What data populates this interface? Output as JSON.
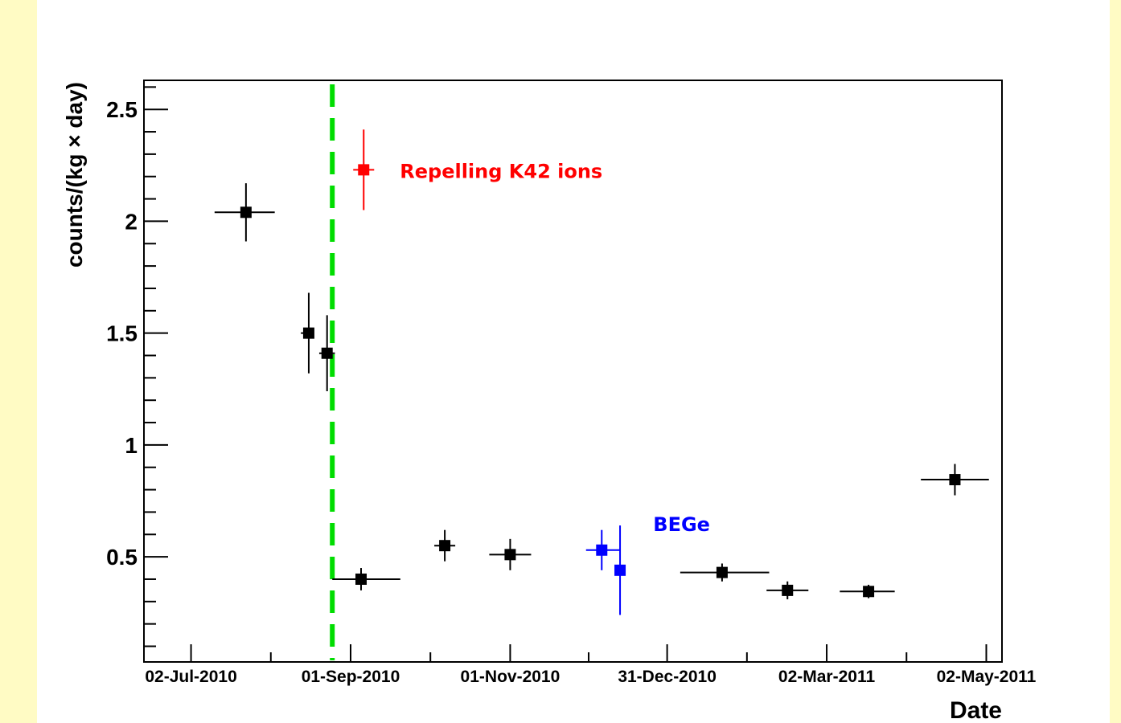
{
  "chart_data": {
    "type": "scatter",
    "xlabel": "Date",
    "ylabel": "counts/(kg × day)",
    "x_tick_labels": [
      "02-Jul-2010",
      "01-Sep-2010",
      "01-Nov-2010",
      "31-Dec-2010",
      "02-Mar-2011",
      "02-May-2011"
    ],
    "y_tick_labels": [
      "0.5",
      "1",
      "1.5",
      "2",
      "2.5"
    ],
    "ylim": [
      0.03,
      2.63
    ],
    "xlim": [
      "2010-06-14",
      "2011-05-08"
    ],
    "grid": false,
    "vertical_marker": {
      "date": "2010-08-25",
      "color": "#00dd00",
      "style": "dashed"
    },
    "colors": {
      "default": "#000000",
      "repelling": "#ff0000",
      "bege": "#0000ff",
      "marker_line": "#00dd00"
    },
    "series": [
      {
        "color": "#000000",
        "points": [
          {
            "x": "2010-07-23",
            "x_from": "2010-07-11",
            "x_to": "2010-08-03",
            "y": 2.04,
            "y_err": 0.13
          },
          {
            "x": "2010-08-16",
            "x_from": "2010-08-13",
            "x_to": "2010-08-18",
            "y": 1.5,
            "y_err": 0.18
          },
          {
            "x": "2010-08-23",
            "x_from": "2010-08-20",
            "x_to": "2010-08-26",
            "y": 1.41,
            "y_err": 0.17
          },
          {
            "x": "2010-09-05",
            "x_from": "2010-08-25",
            "x_to": "2010-09-20",
            "y": 0.4,
            "y_err": 0.05
          },
          {
            "x": "2010-10-07",
            "x_from": "2010-10-03",
            "x_to": "2010-10-11",
            "y": 0.55,
            "y_err": 0.07
          },
          {
            "x": "2010-11-01",
            "x_from": "2010-10-24",
            "x_to": "2010-11-09",
            "y": 0.51,
            "y_err": 0.07
          },
          {
            "x": "2011-01-21",
            "x_from": "2011-01-05",
            "x_to": "2011-02-08",
            "y": 0.43,
            "y_err": 0.04
          },
          {
            "x": "2011-02-15",
            "x_from": "2011-02-07",
            "x_to": "2011-02-23",
            "y": 0.35,
            "y_err": 0.04
          },
          {
            "x": "2011-03-18",
            "x_from": "2011-03-07",
            "x_to": "2011-03-28",
            "y": 0.345,
            "y_err": 0.03
          },
          {
            "x": "2011-04-20",
            "x_from": "2011-04-07",
            "x_to": "2011-05-03",
            "y": 0.845,
            "y_err": 0.07
          }
        ]
      },
      {
        "color": "#ff0000",
        "points": [
          {
            "x": "2010-09-06",
            "x_from": "2010-09-02",
            "x_to": "2010-09-10",
            "y": 2.23,
            "y_err": 0.18
          }
        ]
      },
      {
        "color": "#0000ff",
        "points": [
          {
            "x": "2010-12-06",
            "x_from": "2010-11-30",
            "x_to": "2010-12-13",
            "y": 0.53,
            "y_err": 0.09
          },
          {
            "x": "2010-12-13",
            "x_from": "2010-12-12",
            "x_to": "2010-12-14",
            "y": 0.44,
            "y_err": 0.2
          }
        ]
      }
    ],
    "annotations": [
      {
        "text": "Repelling K42 ions",
        "color": "#ff0000"
      },
      {
        "text": "BEGe",
        "color": "#0000ff"
      }
    ]
  }
}
